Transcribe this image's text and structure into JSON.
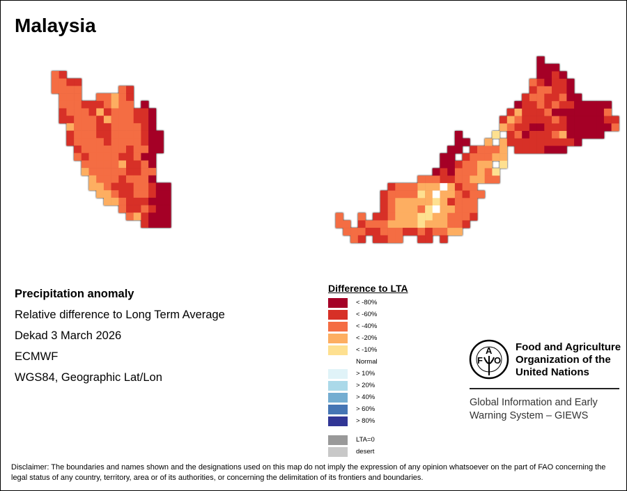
{
  "title": "Malaysia",
  "info": {
    "heading": "Precipitation anomaly",
    "line1": "Relative difference to Long Term Average",
    "line2": "Dekad 3 March 2026",
    "line3": "ECMWF",
    "line4": "WGS84, Geographic Lat/Lon"
  },
  "legend": {
    "title": "Difference to LTA",
    "items": [
      {
        "label": "< -80%",
        "color": "#a50026"
      },
      {
        "label": "< -60%",
        "color": "#d73027"
      },
      {
        "label": "< -40%",
        "color": "#f46d43"
      },
      {
        "label": "< -20%",
        "color": "#fdae61"
      },
      {
        "label": "< -10%",
        "color": "#fee090"
      },
      {
        "label": "Normal",
        "color": "#ffffff"
      },
      {
        "label": "> 10%",
        "color": "#e0f3f8"
      },
      {
        "label": "> 20%",
        "color": "#abd9e9"
      },
      {
        "label": "> 40%",
        "color": "#74add1"
      },
      {
        "label": "> 60%",
        "color": "#4575b4"
      },
      {
        "label": "> 80%",
        "color": "#313695"
      },
      {
        "label": "LTA=0",
        "color": "#999999"
      },
      {
        "label": "desert",
        "color": "#c8c8c8"
      }
    ]
  },
  "fao": {
    "logo_text": "FAO FIAT PANIS",
    "name_line1": "Food and Agriculture",
    "name_line2": "Organization of the",
    "name_line3": "United Nations",
    "giews_line1": "Global Information and Early",
    "giews_line2": "Warning System – GIEWS"
  },
  "disclaimer": "Disclaimer: The boundaries and names shown and the designations used on this map do not imply the expression of any opinion whatsoever on the part of FAO concerning the legal status of any country, territory, area or of its authorities, or concerning the delimitation of its frontiers and boundaries."
}
